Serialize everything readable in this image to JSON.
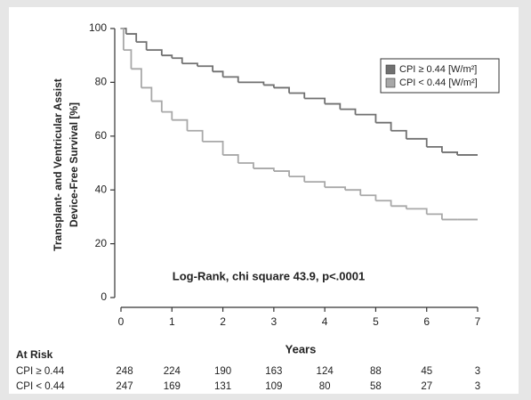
{
  "chart_data": {
    "type": "step",
    "ylabel": [
      "Transplant- and Ventricular Assist",
      "Device-Free Survival [%]"
    ],
    "xlabel": "Years",
    "annotation": "Log-Rank, chi square 43.9, p<.0001",
    "xlim": [
      0,
      7
    ],
    "xticks": [
      0,
      1,
      2,
      3,
      4,
      5,
      6,
      7
    ],
    "ylim": [
      0,
      100
    ],
    "yticks": [
      0,
      20,
      40,
      60,
      80,
      100
    ],
    "legend": "upper right",
    "series": [
      {
        "name": "CPI ≥ 0.44 [W/m²]",
        "color": "#707070",
        "x": [
          0,
          0.1,
          0.3,
          0.5,
          0.8,
          1,
          1.2,
          1.5,
          1.8,
          2,
          2.3,
          2.8,
          3,
          3.3,
          3.6,
          4,
          4.3,
          4.6,
          5,
          5.3,
          5.6,
          6,
          6.3,
          6.6,
          7
        ],
        "values": [
          100,
          98,
          95,
          92,
          90,
          89,
          87,
          86,
          84,
          82,
          80,
          79,
          78,
          76,
          74,
          72,
          70,
          68,
          65,
          62,
          59,
          56,
          54,
          53,
          53
        ]
      },
      {
        "name": "CPI < 0.44 [W/m²]",
        "color": "#a8a8a8",
        "x": [
          0,
          0.05,
          0.2,
          0.4,
          0.6,
          0.8,
          1,
          1.3,
          1.6,
          2,
          2.3,
          2.6,
          3,
          3.3,
          3.6,
          4,
          4.4,
          4.7,
          5,
          5.3,
          5.6,
          6,
          6.3,
          6.6,
          7
        ],
        "values": [
          100,
          92,
          85,
          78,
          73,
          69,
          66,
          62,
          58,
          53,
          50,
          48,
          47,
          45,
          43,
          41,
          40,
          38,
          36,
          34,
          33,
          31,
          29,
          29,
          29
        ]
      }
    ],
    "at_risk": {
      "title": "At Risk",
      "rows": [
        {
          "label": "CPI ≥ 0.44",
          "values": [
            248,
            224,
            190,
            163,
            124,
            88,
            45,
            3
          ]
        },
        {
          "label": "CPI < 0.44",
          "values": [
            247,
            169,
            131,
            109,
            80,
            58,
            27,
            3
          ]
        }
      ]
    }
  }
}
